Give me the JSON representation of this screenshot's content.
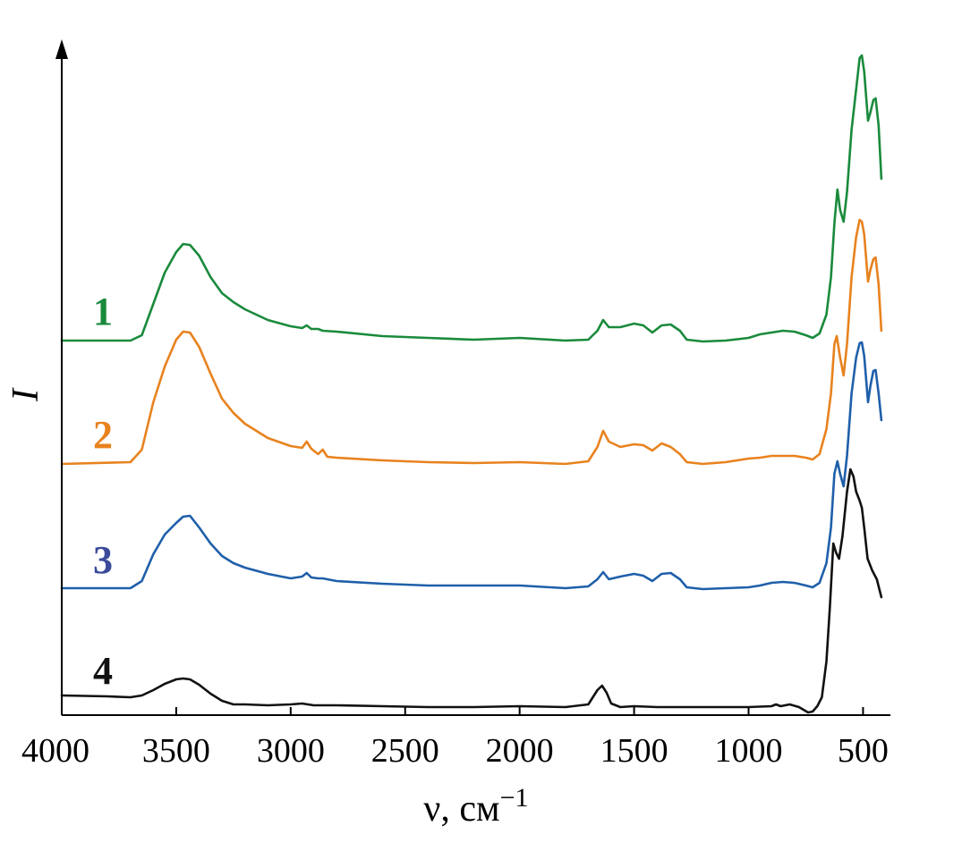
{
  "chart_data": {
    "type": "line",
    "title": "",
    "xlabel": "ν, см",
    "xlabel_sup": "−1",
    "ylabel": "I",
    "xlim": [
      4000,
      400
    ],
    "x_reversed": true,
    "x_ticks": [
      4000,
      3500,
      3000,
      2500,
      2000,
      1500,
      1000,
      500
    ],
    "y_ticks_shown": false,
    "grid": false,
    "legend": "inline-left",
    "series": [
      {
        "label": "1",
        "color": "#1a8a3c",
        "points": [
          [
            4000,
            381
          ],
          [
            3700,
            381
          ],
          [
            3650,
            375
          ],
          [
            3600,
            340
          ],
          [
            3550,
            305
          ],
          [
            3500,
            282
          ],
          [
            3470,
            273
          ],
          [
            3440,
            274
          ],
          [
            3400,
            286
          ],
          [
            3350,
            310
          ],
          [
            3300,
            328
          ],
          [
            3250,
            338
          ],
          [
            3200,
            346
          ],
          [
            3100,
            358
          ],
          [
            3000,
            365
          ],
          [
            2950,
            367
          ],
          [
            2930,
            364
          ],
          [
            2910,
            368
          ],
          [
            2880,
            368
          ],
          [
            2860,
            370
          ],
          [
            2800,
            371
          ],
          [
            2600,
            376
          ],
          [
            2400,
            378
          ],
          [
            2200,
            380
          ],
          [
            2000,
            378
          ],
          [
            1800,
            381
          ],
          [
            1700,
            380
          ],
          [
            1660,
            370
          ],
          [
            1635,
            358
          ],
          [
            1610,
            366
          ],
          [
            1560,
            366
          ],
          [
            1500,
            362
          ],
          [
            1460,
            364
          ],
          [
            1420,
            372
          ],
          [
            1380,
            364
          ],
          [
            1340,
            363
          ],
          [
            1300,
            370
          ],
          [
            1270,
            380
          ],
          [
            1200,
            382
          ],
          [
            1100,
            381
          ],
          [
            1000,
            378
          ],
          [
            950,
            374
          ],
          [
            900,
            372
          ],
          [
            850,
            370
          ],
          [
            800,
            371
          ],
          [
            750,
            375
          ],
          [
            720,
            378
          ],
          [
            690,
            373
          ],
          [
            660,
            352
          ],
          [
            640,
            310
          ],
          [
            625,
            250
          ],
          [
            612,
            212
          ],
          [
            600,
            235
          ],
          [
            585,
            248
          ],
          [
            570,
            215
          ],
          [
            550,
            145
          ],
          [
            530,
            100
          ],
          [
            515,
            65
          ],
          [
            505,
            62
          ],
          [
            495,
            80
          ],
          [
            478,
            135
          ],
          [
            468,
            126
          ],
          [
            455,
            112
          ],
          [
            445,
            110
          ],
          [
            432,
            140
          ],
          [
            420,
            200
          ]
        ]
      },
      {
        "label": "2",
        "color": "#e8821e",
        "points": [
          [
            4000,
            519
          ],
          [
            3700,
            517
          ],
          [
            3650,
            503
          ],
          [
            3600,
            450
          ],
          [
            3550,
            410
          ],
          [
            3500,
            380
          ],
          [
            3470,
            371
          ],
          [
            3440,
            372
          ],
          [
            3400,
            388
          ],
          [
            3350,
            418
          ],
          [
            3300,
            446
          ],
          [
            3250,
            462
          ],
          [
            3200,
            474
          ],
          [
            3100,
            490
          ],
          [
            3000,
            499
          ],
          [
            2950,
            501
          ],
          [
            2930,
            494
          ],
          [
            2910,
            502
          ],
          [
            2880,
            508
          ],
          [
            2860,
            503
          ],
          [
            2840,
            511
          ],
          [
            2800,
            512
          ],
          [
            2600,
            515
          ],
          [
            2400,
            517
          ],
          [
            2200,
            518
          ],
          [
            2000,
            517
          ],
          [
            1800,
            519
          ],
          [
            1700,
            516
          ],
          [
            1660,
            500
          ],
          [
            1635,
            482
          ],
          [
            1610,
            494
          ],
          [
            1560,
            500
          ],
          [
            1500,
            497
          ],
          [
            1460,
            498
          ],
          [
            1420,
            504
          ],
          [
            1380,
            496
          ],
          [
            1340,
            500
          ],
          [
            1300,
            508
          ],
          [
            1270,
            517
          ],
          [
            1200,
            519
          ],
          [
            1100,
            517
          ],
          [
            1000,
            513
          ],
          [
            950,
            512
          ],
          [
            900,
            510
          ],
          [
            850,
            510
          ],
          [
            800,
            510
          ],
          [
            750,
            512
          ],
          [
            720,
            514
          ],
          [
            690,
            508
          ],
          [
            660,
            480
          ],
          [
            640,
            440
          ],
          [
            625,
            385
          ],
          [
            615,
            376
          ],
          [
            600,
            400
          ],
          [
            585,
            420
          ],
          [
            570,
            385
          ],
          [
            550,
            310
          ],
          [
            530,
            265
          ],
          [
            515,
            246
          ],
          [
            505,
            248
          ],
          [
            495,
            262
          ],
          [
            478,
            315
          ],
          [
            468,
            302
          ],
          [
            455,
            290
          ],
          [
            445,
            288
          ],
          [
            432,
            318
          ],
          [
            420,
            370
          ]
        ]
      },
      {
        "label": "3",
        "color": "#1f5faa",
        "points": [
          [
            4000,
            658
          ],
          [
            3700,
            658
          ],
          [
            3650,
            650
          ],
          [
            3600,
            620
          ],
          [
            3550,
            598
          ],
          [
            3500,
            585
          ],
          [
            3470,
            578
          ],
          [
            3440,
            577
          ],
          [
            3400,
            590
          ],
          [
            3350,
            608
          ],
          [
            3300,
            622
          ],
          [
            3250,
            630
          ],
          [
            3200,
            635
          ],
          [
            3100,
            642
          ],
          [
            3000,
            647
          ],
          [
            2950,
            645
          ],
          [
            2930,
            641
          ],
          [
            2910,
            646
          ],
          [
            2880,
            647
          ],
          [
            2860,
            647
          ],
          [
            2800,
            650
          ],
          [
            2600,
            653
          ],
          [
            2400,
            655
          ],
          [
            2200,
            655
          ],
          [
            2000,
            655
          ],
          [
            1800,
            658
          ],
          [
            1700,
            656
          ],
          [
            1660,
            648
          ],
          [
            1635,
            640
          ],
          [
            1610,
            648
          ],
          [
            1560,
            645
          ],
          [
            1500,
            642
          ],
          [
            1460,
            644
          ],
          [
            1420,
            650
          ],
          [
            1380,
            642
          ],
          [
            1340,
            641
          ],
          [
            1300,
            648
          ],
          [
            1270,
            657
          ],
          [
            1200,
            659
          ],
          [
            1100,
            658
          ],
          [
            1000,
            657
          ],
          [
            950,
            655
          ],
          [
            900,
            652
          ],
          [
            850,
            651
          ],
          [
            800,
            652
          ],
          [
            750,
            655
          ],
          [
            720,
            657
          ],
          [
            690,
            652
          ],
          [
            660,
            630
          ],
          [
            640,
            590
          ],
          [
            625,
            530
          ],
          [
            612,
            516
          ],
          [
            600,
            530
          ],
          [
            585,
            544
          ],
          [
            570,
            510
          ],
          [
            550,
            440
          ],
          [
            530,
            400
          ],
          [
            515,
            384
          ],
          [
            505,
            383
          ],
          [
            495,
            398
          ],
          [
            478,
            450
          ],
          [
            468,
            432
          ],
          [
            455,
            415
          ],
          [
            445,
            414
          ],
          [
            432,
            440
          ],
          [
            420,
            470
          ]
        ]
      },
      {
        "label": "4",
        "color": "#111111",
        "points": [
          [
            4000,
            778
          ],
          [
            3800,
            779
          ],
          [
            3700,
            780
          ],
          [
            3650,
            778
          ],
          [
            3600,
            772
          ],
          [
            3550,
            765
          ],
          [
            3500,
            760
          ],
          [
            3470,
            759
          ],
          [
            3440,
            760
          ],
          [
            3400,
            766
          ],
          [
            3350,
            776
          ],
          [
            3300,
            784
          ],
          [
            3250,
            788
          ],
          [
            3200,
            788
          ],
          [
            3100,
            789
          ],
          [
            3000,
            788
          ],
          [
            2950,
            787
          ],
          [
            2900,
            789
          ],
          [
            2800,
            789
          ],
          [
            2600,
            790
          ],
          [
            2400,
            791
          ],
          [
            2200,
            791
          ],
          [
            2000,
            790
          ],
          [
            1800,
            791
          ],
          [
            1700,
            788
          ],
          [
            1660,
            772
          ],
          [
            1640,
            767
          ],
          [
            1620,
            775
          ],
          [
            1600,
            787
          ],
          [
            1560,
            791
          ],
          [
            1500,
            790
          ],
          [
            1400,
            791
          ],
          [
            1300,
            791
          ],
          [
            1200,
            791
          ],
          [
            1100,
            791
          ],
          [
            1000,
            791
          ],
          [
            900,
            790
          ],
          [
            880,
            788
          ],
          [
            860,
            790
          ],
          [
            820,
            788
          ],
          [
            780,
            791
          ],
          [
            740,
            797
          ],
          [
            720,
            796
          ],
          [
            700,
            790
          ],
          [
            680,
            780
          ],
          [
            660,
            740
          ],
          [
            645,
            680
          ],
          [
            630,
            608
          ],
          [
            618,
            618
          ],
          [
            605,
            625
          ],
          [
            590,
            600
          ],
          [
            570,
            550
          ],
          [
            555,
            525
          ],
          [
            542,
            533
          ],
          [
            530,
            550
          ],
          [
            515,
            560
          ],
          [
            505,
            568
          ],
          [
            495,
            590
          ],
          [
            480,
            625
          ],
          [
            460,
            638
          ],
          [
            440,
            648
          ],
          [
            420,
            668
          ]
        ]
      }
    ]
  }
}
